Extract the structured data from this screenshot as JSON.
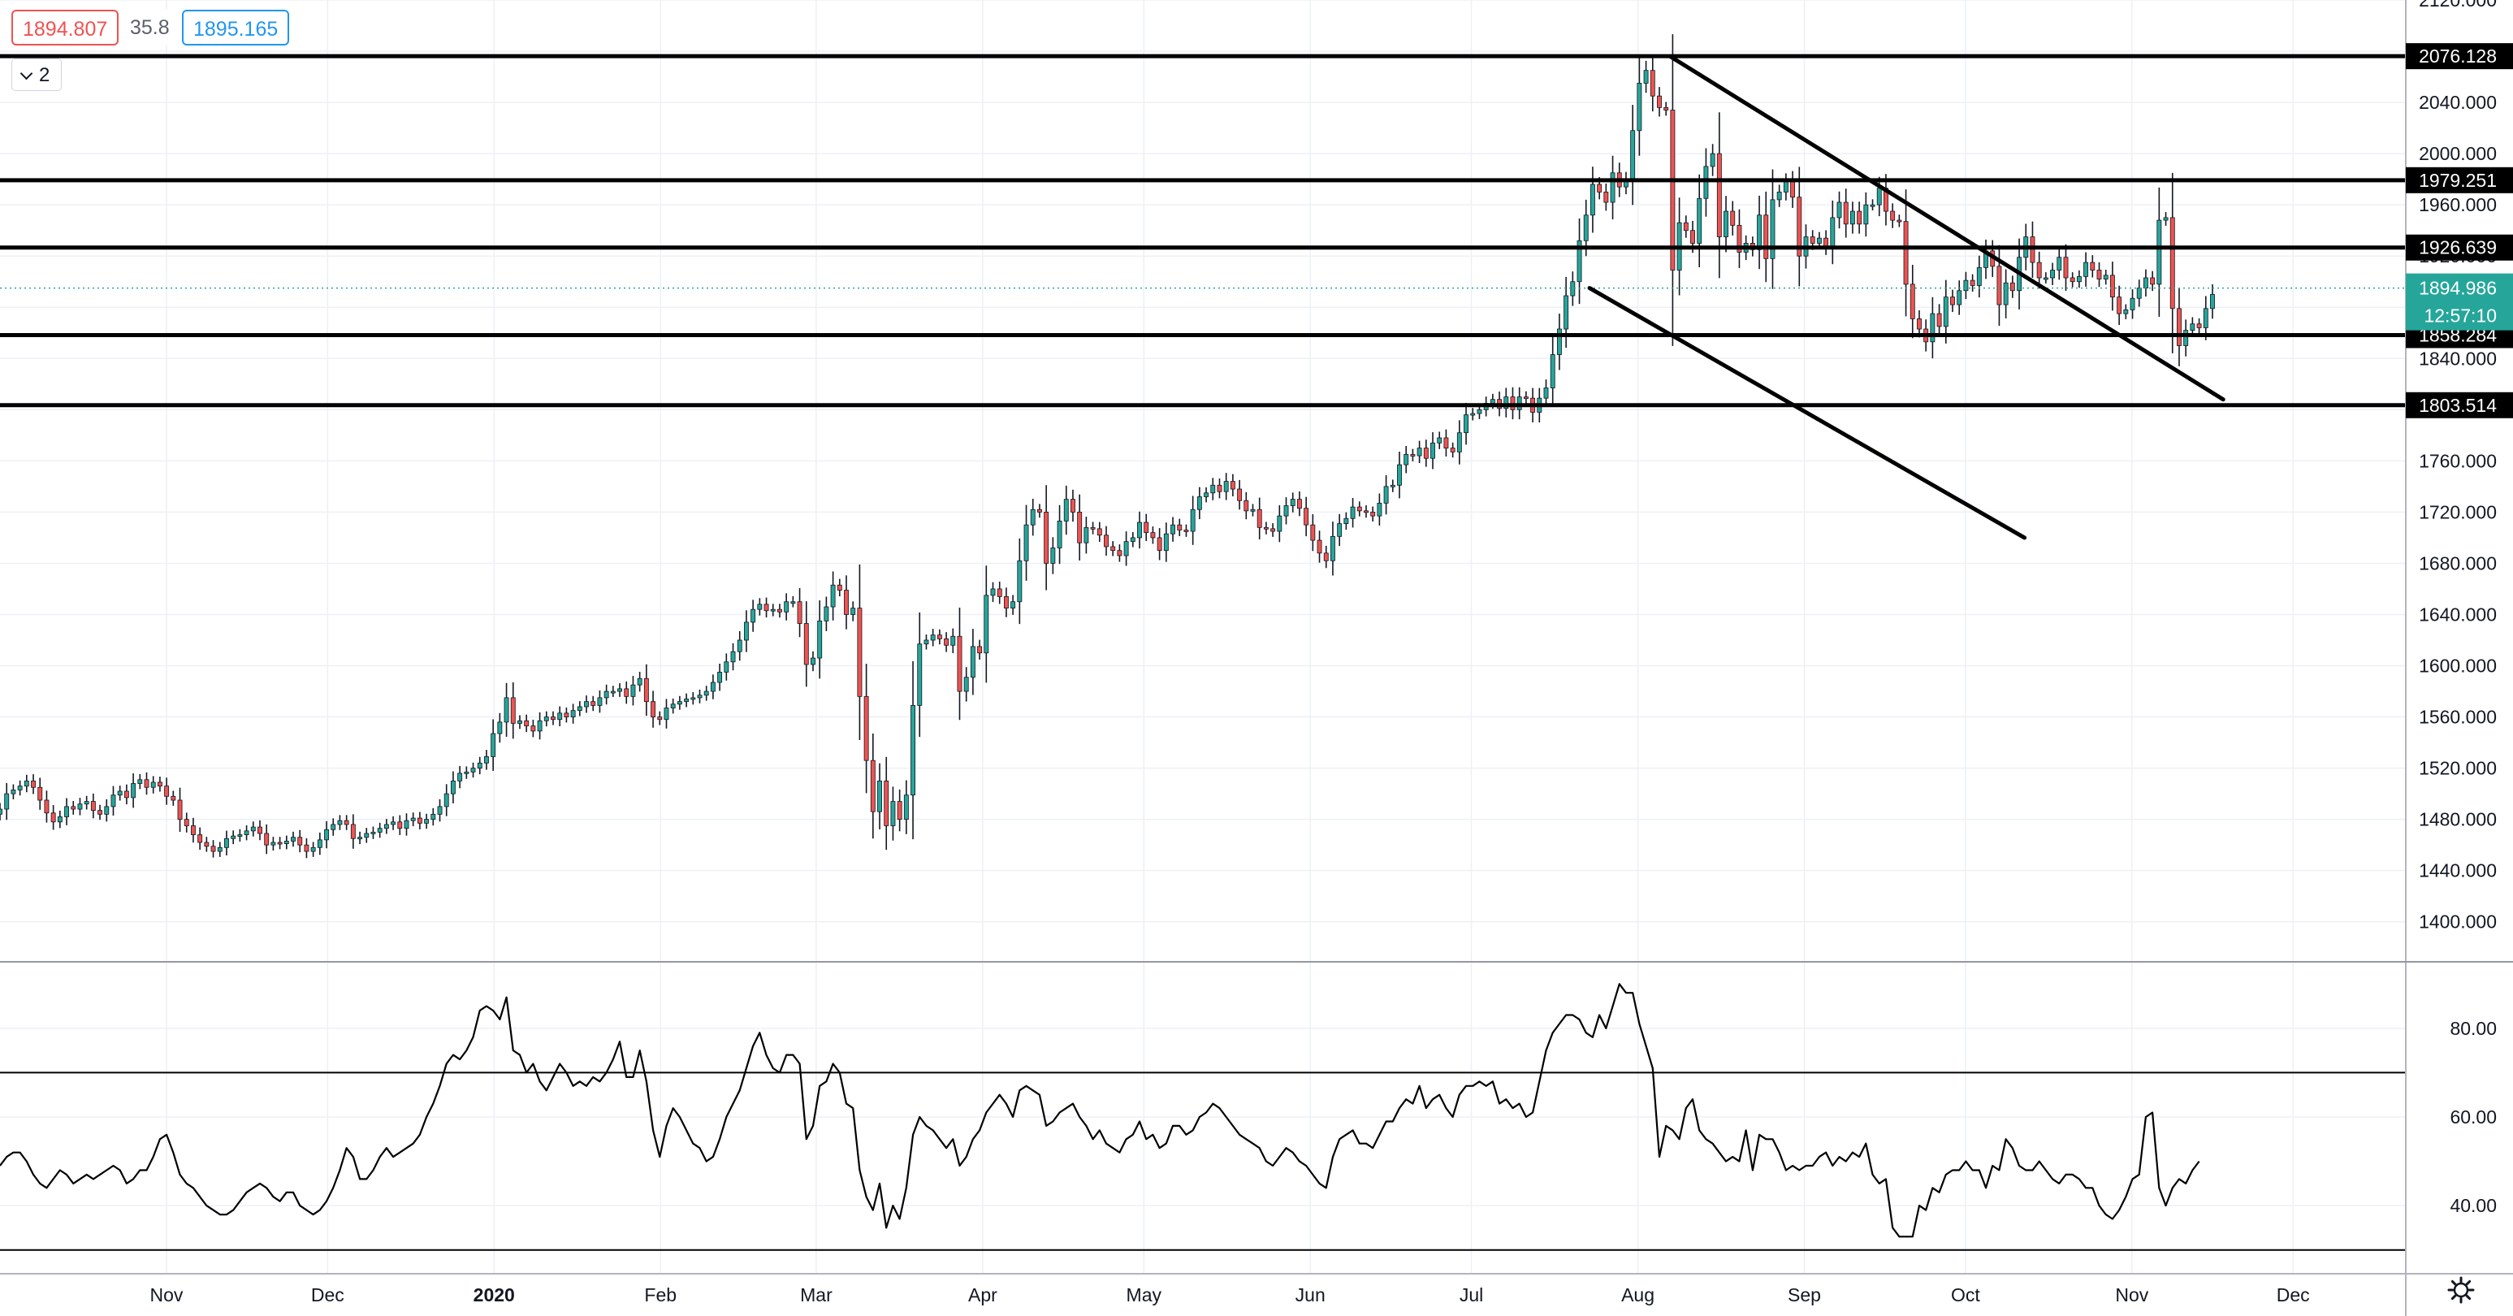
{
  "header": {
    "price_red": "1894.807",
    "spread": "35.8",
    "price_blue": "1895.165",
    "indicator_count": "2"
  },
  "chart_data": {
    "type": "candlestick",
    "instrument_note": "",
    "price_axis": {
      "range": [
        1370,
        2120
      ],
      "ticks": [
        "1400.000",
        "1440.000",
        "1480.000",
        "1520.000",
        "1560.000",
        "1600.000",
        "1640.000",
        "1680.000",
        "1720.000",
        "1760.000",
        "1800.000",
        "1840.000",
        "1880.000",
        "1920.000",
        "1960.000",
        "2000.000",
        "2040.000",
        "2080.000",
        "2120.000"
      ]
    },
    "time_axis": {
      "labels": [
        {
          "label": "Nov",
          "date": "2019-11-01"
        },
        {
          "label": "Dec",
          "date": "2019-12-01"
        },
        {
          "label": "2020",
          "date": "2020-01-01",
          "bold": true
        },
        {
          "label": "Feb",
          "date": "2020-02-01"
        },
        {
          "label": "Mar",
          "date": "2020-03-01"
        },
        {
          "label": "Apr",
          "date": "2020-04-01"
        },
        {
          "label": "May",
          "date": "2020-05-01"
        },
        {
          "label": "Jun",
          "date": "2020-06-01"
        },
        {
          "label": "Jul",
          "date": "2020-07-01"
        },
        {
          "label": "Aug",
          "date": "2020-08-01"
        },
        {
          "label": "Sep",
          "date": "2020-09-01"
        },
        {
          "label": "Oct",
          "date": "2020-10-01"
        },
        {
          "label": "Nov",
          "date": "2020-11-01"
        },
        {
          "label": "Dec",
          "date": "2020-12-01"
        }
      ],
      "range": [
        "2019-10-01",
        "2020-12-22"
      ]
    },
    "horizontal_levels": [
      {
        "value": 2076.128,
        "label": "2076.128"
      },
      {
        "value": 1979.251,
        "label": "1979.251"
      },
      {
        "value": 1926.639,
        "label": "1926.639"
      },
      {
        "value": 1858.284,
        "label": "1858.284"
      },
      {
        "value": 1803.514,
        "label": "1803.514"
      }
    ],
    "current_price": {
      "value": 1894.986,
      "label": "1894.986",
      "countdown": "12:57:10",
      "color": "#26a69a"
    },
    "trendlines": [
      {
        "from": {
          "date": "2020-08-07",
          "price": 2076
        },
        "to": {
          "date": "2020-11-18",
          "price": 1808
        }
      },
      {
        "from": {
          "date": "2020-07-23",
          "price": 1895
        },
        "to": {
          "date": "2020-10-12",
          "price": 1700
        }
      }
    ],
    "candles": {
      "start_date": "2019-10-01",
      "interval": "1 trading day",
      "close": [
        1488,
        1500,
        1503,
        1506,
        1510,
        1505,
        1495,
        1485,
        1478,
        1482,
        1490,
        1488,
        1492,
        1494,
        1487,
        1484,
        1490,
        1499,
        1502,
        1497,
        1508,
        1511,
        1505,
        1509,
        1506,
        1498,
        1495,
        1480,
        1475,
        1468,
        1462,
        1459,
        1455,
        1458,
        1465,
        1467,
        1468,
        1471,
        1474,
        1469,
        1460,
        1462,
        1461,
        1463,
        1466,
        1460,
        1455,
        1458,
        1464,
        1472,
        1476,
        1479,
        1476,
        1465,
        1466,
        1469,
        1470,
        1473,
        1476,
        1478,
        1473,
        1479,
        1481,
        1477,
        1480,
        1484,
        1490,
        1500,
        1510,
        1516,
        1517,
        1520,
        1524,
        1529,
        1547,
        1556,
        1575,
        1555,
        1557,
        1553,
        1549,
        1557,
        1560,
        1558,
        1563,
        1560,
        1565,
        1568,
        1572,
        1569,
        1575,
        1580,
        1580,
        1582,
        1576,
        1585,
        1590,
        1572,
        1560,
        1558,
        1567,
        1570,
        1572,
        1574,
        1575,
        1577,
        1580,
        1587,
        1595,
        1603,
        1611,
        1620,
        1634,
        1644,
        1648,
        1643,
        1644,
        1642,
        1650,
        1650,
        1633,
        1601,
        1606,
        1635,
        1646,
        1663,
        1659,
        1640,
        1645,
        1576,
        1526,
        1486,
        1510,
        1475,
        1494,
        1480,
        1499,
        1569,
        1617,
        1620,
        1624,
        1621,
        1616,
        1623,
        1580,
        1591,
        1615,
        1610,
        1655,
        1660,
        1654,
        1645,
        1650,
        1682,
        1710,
        1722,
        1720,
        1680,
        1692,
        1713,
        1730,
        1720,
        1696,
        1708,
        1707,
        1702,
        1693,
        1690,
        1686,
        1697,
        1700,
        1712,
        1704,
        1700,
        1690,
        1703,
        1710,
        1706,
        1705,
        1722,
        1732,
        1735,
        1741,
        1736,
        1744,
        1738,
        1729,
        1721,
        1722,
        1708,
        1707,
        1705,
        1717,
        1725,
        1730,
        1723,
        1710,
        1698,
        1688,
        1682,
        1701,
        1711,
        1715,
        1724,
        1721,
        1720,
        1717,
        1727,
        1740,
        1741,
        1757,
        1765,
        1764,
        1770,
        1762,
        1774,
        1778,
        1770,
        1767,
        1782,
        1796,
        1797,
        1800,
        1805,
        1808,
        1801,
        1810,
        1800,
        1810,
        1809,
        1798,
        1809,
        1817,
        1843,
        1863,
        1889,
        1900,
        1932,
        1952,
        1976,
        1970,
        1962,
        1985,
        1974,
        1980,
        2018,
        2055,
        2065,
        2045,
        2036,
        2034,
        1909,
        1946,
        1940,
        1930,
        1965,
        1990,
        2000,
        1935,
        1955,
        1944,
        1923,
        1930,
        1925,
        1952,
        1918,
        1964,
        1970,
        1978,
        1966,
        1920,
        1935,
        1930,
        1934,
        1927,
        1950,
        1962,
        1945,
        1955,
        1945,
        1960,
        1960,
        1973,
        1955,
        1948,
        1947,
        1898,
        1871,
        1863,
        1853,
        1875,
        1865,
        1888,
        1882,
        1893,
        1901,
        1897,
        1911,
        1924,
        1912,
        1882,
        1899,
        1893,
        1919,
        1935,
        1915,
        1903,
        1903,
        1909,
        1919,
        1903,
        1900,
        1904,
        1915,
        1909,
        1902,
        1905,
        1888,
        1875,
        1878,
        1887,
        1895,
        1903,
        1898,
        1948,
        1950,
        1879,
        1850,
        1862,
        1867,
        1864,
        1879,
        1890
      ]
    },
    "rsi": {
      "range": [
        25,
        95
      ],
      "ticks": [
        "40.00",
        "60.00",
        "80.00"
      ],
      "levels": [
        70,
        30
      ],
      "values": [
        49,
        51,
        52,
        52,
        50,
        47,
        45,
        44,
        46,
        48,
        47,
        45,
        46,
        47,
        46,
        47,
        48,
        49,
        48,
        45,
        46,
        48,
        48,
        51,
        55,
        56,
        52,
        47,
        45,
        44,
        42,
        40,
        39,
        38,
        38,
        39,
        41,
        43,
        44,
        45,
        44,
        42,
        41,
        43,
        43,
        40,
        39,
        38,
        39,
        41,
        44,
        48,
        53,
        51,
        46,
        46,
        48,
        51,
        53,
        51,
        52,
        53,
        54,
        56,
        60,
        63,
        67,
        72,
        74,
        73,
        75,
        78,
        84,
        85,
        84,
        82,
        87,
        75,
        74,
        70,
        72,
        68,
        66,
        69,
        72,
        70,
        67,
        68,
        67,
        69,
        68,
        70,
        73,
        77,
        69,
        69,
        75,
        68,
        57,
        51,
        58,
        62,
        60,
        57,
        54,
        53,
        50,
        51,
        55,
        60,
        63,
        66,
        71,
        76,
        79,
        74,
        71,
        70,
        74,
        74,
        72,
        55,
        58,
        67,
        68,
        72,
        70,
        63,
        62,
        48,
        42,
        39,
        45,
        35,
        40,
        37,
        44,
        56,
        60,
        58,
        57,
        55,
        53,
        55,
        49,
        51,
        55,
        57,
        61,
        63,
        65,
        63,
        60,
        66,
        67,
        66,
        65,
        58,
        59,
        61,
        62,
        63,
        60,
        58,
        55,
        57,
        54,
        53,
        52,
        55,
        56,
        59,
        55,
        56,
        53,
        54,
        58,
        58,
        56,
        57,
        60,
        61,
        63,
        62,
        60,
        58,
        56,
        55,
        54,
        53,
        50,
        49,
        51,
        53,
        52,
        50,
        49,
        47,
        45,
        44,
        51,
        55,
        56,
        57,
        54,
        54,
        53,
        56,
        59,
        59,
        62,
        64,
        63,
        67,
        62,
        64,
        65,
        62,
        60,
        65,
        67,
        67,
        68,
        67,
        68,
        63,
        64,
        62,
        63,
        60,
        61,
        68,
        75,
        79,
        81,
        83,
        83,
        82,
        79,
        78,
        83,
        80,
        85,
        90,
        88,
        88,
        81,
        76,
        71,
        51,
        58,
        57,
        55,
        62,
        64,
        57,
        55,
        54,
        52,
        50,
        51,
        50,
        57,
        48,
        56,
        55,
        55,
        52,
        48,
        49,
        48,
        49,
        49,
        51,
        52,
        49,
        51,
        50,
        52,
        51,
        54,
        47,
        45,
        46,
        35,
        33,
        33,
        33,
        40,
        39,
        44,
        43,
        47,
        48,
        48,
        50,
        48,
        48,
        44,
        49,
        48,
        55,
        53,
        49,
        48,
        48,
        50,
        48,
        46,
        45,
        47,
        47,
        46,
        44,
        44,
        40,
        38,
        37,
        39,
        42,
        46,
        47,
        60,
        61,
        44,
        40,
        44,
        46,
        45,
        48,
        50
      ]
    }
  },
  "colors": {
    "up": "#26a69a",
    "down": "#ef5350",
    "grid": "#edf0f5",
    "line": "#000000"
  }
}
